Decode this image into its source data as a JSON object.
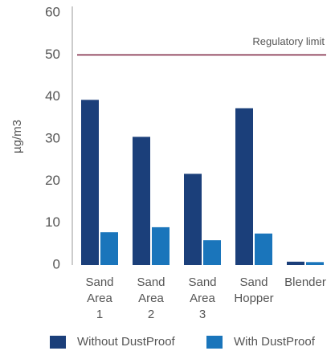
{
  "chart_data": {
    "type": "bar",
    "y_label": "µg/m3",
    "categories": [
      [
        "Sand",
        "Area",
        "1"
      ],
      [
        "Sand",
        "Area",
        "2"
      ],
      [
        "Sand",
        "Area",
        "3"
      ],
      [
        "Sand",
        "Hopper"
      ],
      [
        "Blender"
      ]
    ],
    "series": [
      {
        "name": "Without DustProof",
        "color": "#1b3f7a",
        "values": [
          39.3,
          30.5,
          21.7,
          37.3,
          0.8
        ]
      },
      {
        "name": "With DustProof",
        "color": "#1a75bb",
        "values": [
          7.8,
          9.0,
          5.9,
          7.5,
          0.7
        ]
      }
    ],
    "ylim": [
      0,
      60
    ],
    "yticks": [
      0,
      10,
      20,
      30,
      40,
      50,
      60
    ],
    "annotation": {
      "text": "Regulatory limit",
      "value": 50,
      "color": "#7a1f3d"
    },
    "legend": "bottom"
  }
}
